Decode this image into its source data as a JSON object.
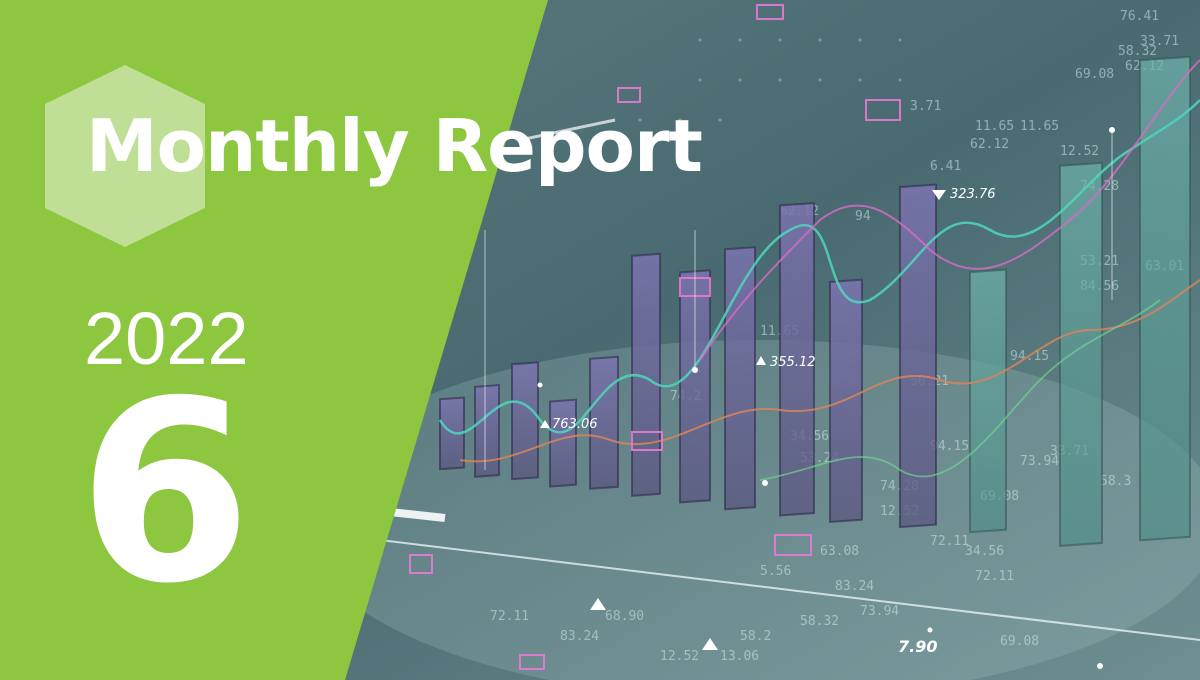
{
  "title": "Monthly Report",
  "year": "2022",
  "month": "6",
  "colors": {
    "brand_green": "#8dc63f",
    "hexagon_tint": "#c9e3a6",
    "background": "#4a6a70",
    "bar": "#6f6a9a",
    "teal_bar": "#5f9e98",
    "line_teal": "#4fd1b8",
    "line_magenta": "#d86ac8",
    "line_orange": "#d9825a"
  },
  "icons": [
    "hexagon-shape",
    "triangle-marker-icon"
  ],
  "background_numbers": [
    "76.41",
    "58.32",
    "33.71",
    "69.08",
    "62.12",
    "12.52",
    "74.28",
    "11.65",
    "62.12",
    "3.71",
    "6.41",
    "63.01",
    "53.21",
    "94.15",
    "84.56",
    "73.94",
    "56.21",
    "34.56",
    "72.11",
    "68.90",
    "83.24"
  ],
  "chart_labels": [
    "323.76",
    "355.12",
    "763.06",
    "7.90"
  ]
}
